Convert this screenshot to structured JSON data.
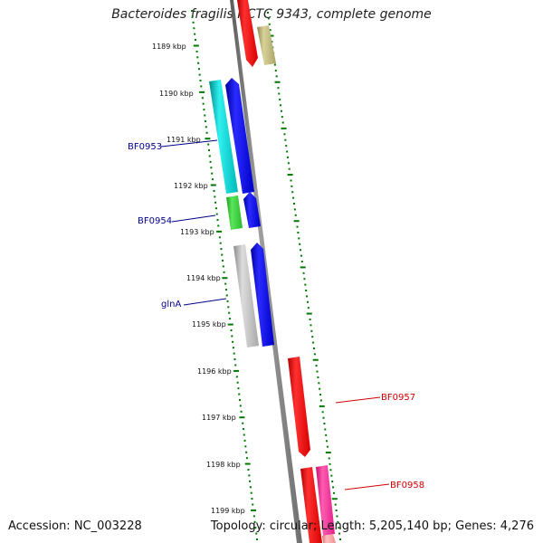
{
  "title": "Bacteroides fragilis NCTC 9343, complete genome",
  "footer": {
    "accession": "Accession: NC_003228",
    "summary": "Topology: circular; Length: 5,205,140 bp; Genes: 4,276"
  },
  "scale_labels": [
    "1189 kbp",
    "1190 kbp",
    "1191 kbp",
    "1192 kbp",
    "1193 kbp",
    "1194 kbp",
    "1195 kbp",
    "1196 kbp",
    "1197 kbp",
    "1198 kbp",
    "1199 kbp"
  ],
  "gene_labels": [
    {
      "name": "BF0953",
      "color": "#00008b"
    },
    {
      "name": "BF0954",
      "color": "#00008b"
    },
    {
      "name": "glnA",
      "color": "#00008b"
    },
    {
      "name": "BF0957",
      "color": "#cc0000"
    },
    {
      "name": "BF0958",
      "color": "#cc0000"
    }
  ],
  "colors": {
    "backbone": "#808080",
    "forward_cds": "#0000ff",
    "reverse_cds": "#ff0000",
    "ticks": "#007700"
  }
}
